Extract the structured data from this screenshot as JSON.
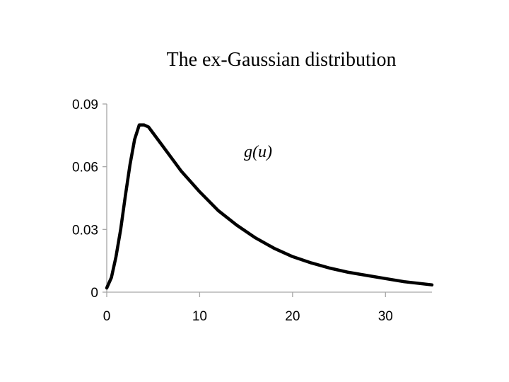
{
  "chart_data": {
    "type": "line",
    "title": "The ex-Gaussian distribution",
    "annotation": "g(u)",
    "xlabel": "",
    "ylabel": "",
    "xlim": [
      0,
      35
    ],
    "ylim": [
      0,
      0.09
    ],
    "x_ticks": [
      0,
      10,
      20,
      30
    ],
    "x_tick_labels": [
      "0",
      "10",
      "20",
      "30"
    ],
    "y_ticks": [
      0,
      0.03,
      0.06,
      0.09
    ],
    "y_tick_labels": [
      "0",
      "0.03",
      "0.06",
      "0.09"
    ],
    "grid": false,
    "legend": "none",
    "line_color": "#000000",
    "axis_color": "#a6a6a6",
    "series": [
      {
        "x": [
          0,
          0.5,
          1,
          1.5,
          2,
          2.5,
          3,
          3.5,
          4,
          4.5,
          5,
          6,
          7,
          8,
          9,
          10,
          12,
          14,
          16,
          18,
          20,
          22,
          24,
          26,
          28,
          30,
          32,
          34,
          35
        ],
        "values": [
          0.002,
          0.007,
          0.017,
          0.03,
          0.046,
          0.061,
          0.073,
          0.08,
          0.08,
          0.079,
          0.076,
          0.07,
          0.064,
          0.058,
          0.053,
          0.048,
          0.039,
          0.032,
          0.026,
          0.021,
          0.017,
          0.014,
          0.0115,
          0.0095,
          0.008,
          0.0065,
          0.005,
          0.004,
          0.0035
        ]
      }
    ]
  }
}
